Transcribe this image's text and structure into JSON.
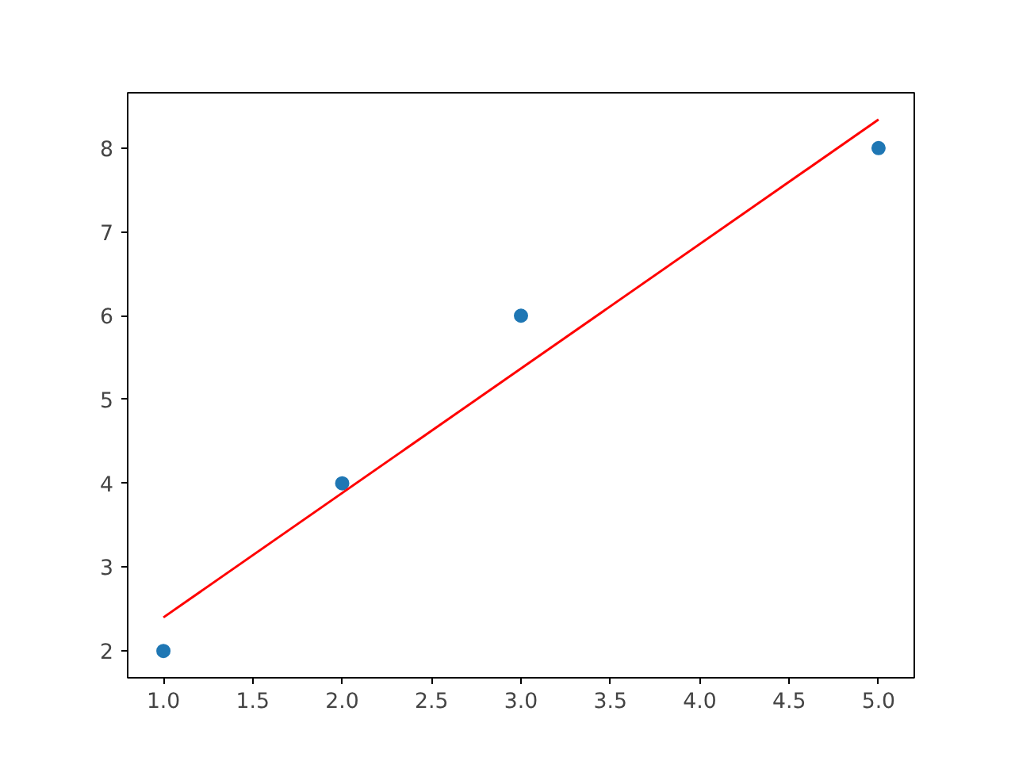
{
  "chart_data": {
    "type": "scatter",
    "grid": false,
    "series": [
      {
        "color": "#1f77b4",
        "marker": "circle",
        "x": [
          1,
          2,
          3,
          5
        ],
        "values": [
          2,
          4,
          6,
          8
        ]
      },
      {
        "type": "line",
        "color": "#ff0000",
        "marker": "none",
        "line_style": "solid",
        "x": [
          1,
          5
        ],
        "values": [
          2.4,
          8.34
        ]
      }
    ],
    "xlim": [
      0.8,
      5.2
    ],
    "ylim": [
      1.68,
      8.66
    ],
    "xticks": [
      {
        "value": 1,
        "label": "1.0"
      },
      {
        "value": 1.5,
        "label": "1.5"
      },
      {
        "value": 2,
        "label": "2.0"
      },
      {
        "value": 2.5,
        "label": "2.5"
      },
      {
        "value": 3,
        "label": "3.0"
      },
      {
        "value": 3.5,
        "label": "3.5"
      },
      {
        "value": 4,
        "label": "4.0"
      },
      {
        "value": 4.5,
        "label": "4.5"
      },
      {
        "value": 5,
        "label": "5.0"
      }
    ],
    "yticks": [
      2,
      3,
      4,
      5,
      6,
      7,
      8
    ]
  }
}
